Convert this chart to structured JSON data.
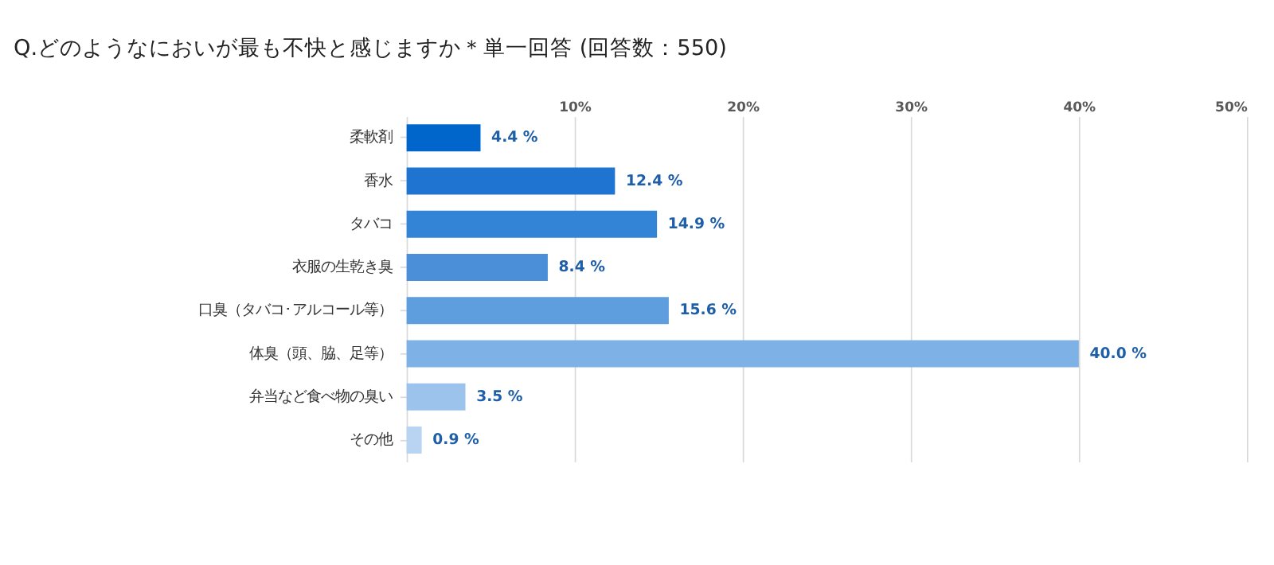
{
  "chart_data": {
    "type": "bar",
    "orientation": "horizontal",
    "title": "Q.どのようなにおいが最も不快と感じますか＊単一回答 (回答数：550)",
    "categories": [
      "柔軟剤",
      "香水",
      "タバコ",
      "衣服の生乾き臭",
      "口臭（タバコ･アルコール等）",
      "体臭（頭、脇、足等）",
      "弁当など食べ物の臭い",
      "その他"
    ],
    "values": [
      4.4,
      12.4,
      14.9,
      8.4,
      15.6,
      40.0,
      3.5,
      0.9
    ],
    "colors": [
      "#0066cc",
      "#1f73d1",
      "#3383d6",
      "#4a8fd8",
      "#5f9ede",
      "#7eb1e6",
      "#9cc3ec",
      "#b8d4f2"
    ],
    "value_labels": [
      "4.4 %",
      "12.4 %",
      "14.9 %",
      "8.4 %",
      "15.6 %",
      "40.0 %",
      "3.5 %",
      "0.9 %"
    ],
    "xlim": [
      0,
      50
    ],
    "xticks": [
      {
        "value": 10,
        "label": "10%"
      },
      {
        "value": 20,
        "label": "20%"
      },
      {
        "value": 30,
        "label": "30%"
      },
      {
        "value": 40,
        "label": "40%"
      },
      {
        "value": 50,
        "label": "50%"
      }
    ],
    "grid": "x"
  }
}
